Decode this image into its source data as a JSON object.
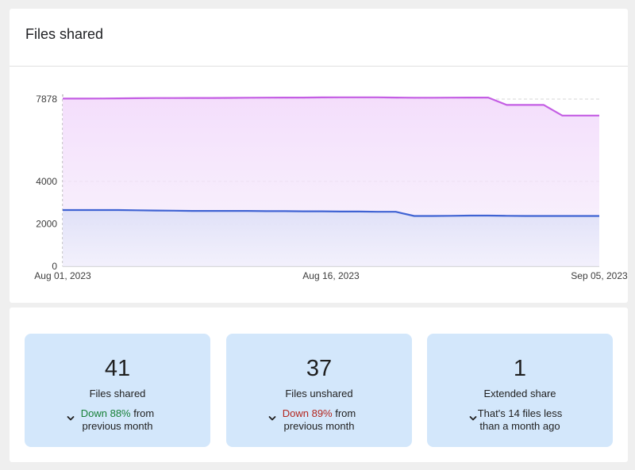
{
  "header": {
    "title": "Files shared"
  },
  "chart_data": {
    "type": "area",
    "x_labels": [
      "Aug 01, 2023",
      "Aug 16, 2023",
      "Sep 05, 2023"
    ],
    "y_ticks": [
      0,
      2000,
      4000,
      7878
    ],
    "ylim": [
      0,
      7878
    ],
    "grid": true,
    "series": [
      {
        "color": "#c45ee4",
        "values": [
          7900,
          7900,
          7905,
          7910,
          7920,
          7925,
          7925,
          7930,
          7930,
          7935,
          7940,
          7945,
          7950,
          7950,
          7955,
          7960,
          7960,
          7960,
          7950,
          7940,
          7940,
          7945,
          7950,
          7950,
          7600,
          7600,
          7600,
          7100,
          7100,
          7100
        ]
      },
      {
        "color": "#3f63d3",
        "values": [
          2650,
          2650,
          2650,
          2650,
          2640,
          2630,
          2620,
          2610,
          2610,
          2610,
          2610,
          2600,
          2600,
          2590,
          2590,
          2580,
          2580,
          2570,
          2570,
          2370,
          2370,
          2380,
          2390,
          2390,
          2380,
          2370,
          2370,
          2370,
          2370,
          2370
        ]
      }
    ]
  },
  "stats": [
    {
      "value": "41",
      "label": "Files shared",
      "delta_pct": "Down 88%",
      "delta_rest": " from",
      "delta_line2": "previous month",
      "tone": "green"
    },
    {
      "value": "37",
      "label": "Files unshared",
      "delta_pct": "Down 89%",
      "delta_rest": " from",
      "delta_line2": "previous month",
      "tone": "red"
    },
    {
      "value": "1",
      "label": "Extended share",
      "delta_pct": "",
      "delta_rest": "That's 14 files less",
      "delta_line2": "than a month ago",
      "tone": "neutral"
    }
  ],
  "icons": {
    "delta_toggle": "chevron-down-icon"
  }
}
